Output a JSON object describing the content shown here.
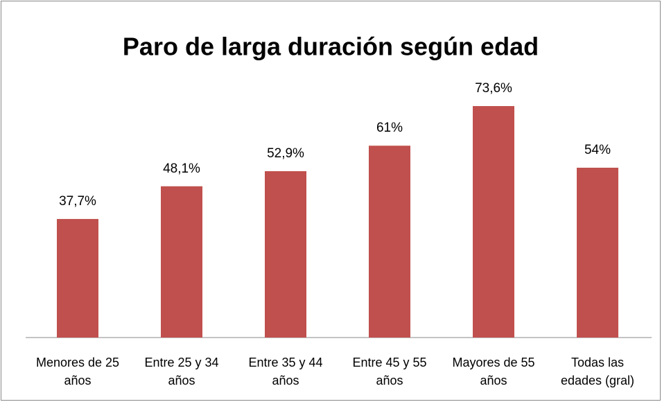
{
  "chart_data": {
    "type": "bar",
    "title": "Paro de larga duración según edad",
    "categories": [
      "Menores de 25 años",
      "Entre 25 y 34 años",
      "Entre 35 y 44 años",
      "Entre 45 y 55 años",
      "Mayores de 55 años",
      "Todas las edades (gral)"
    ],
    "values": [
      37.7,
      48.1,
      52.9,
      61,
      73.6,
      54
    ],
    "value_labels": [
      "37,7%",
      "48,1%",
      "52,9%",
      "61%",
      "73,6%",
      "54%"
    ],
    "color": "#c0504d",
    "ylim": [
      0,
      80
    ]
  }
}
